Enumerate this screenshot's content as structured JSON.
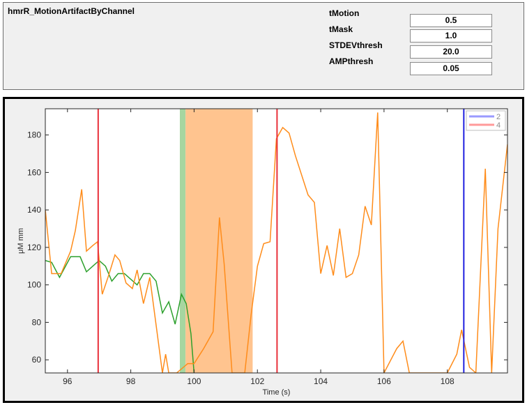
{
  "function_name": "hmrR_MotionArtifactByChannel",
  "params": [
    {
      "label": "tMotion",
      "value": "0.5"
    },
    {
      "label": "tMask",
      "value": "1.0"
    },
    {
      "label": "STDEVthresh",
      "value": "20.0"
    },
    {
      "label": "AMPthresh",
      "value": "0.05"
    }
  ],
  "chart_data": {
    "type": "line",
    "xlabel": "Time (s)",
    "ylabel": "μM mm",
    "xlim": [
      95.3,
      109.9
    ],
    "ylim": [
      53,
      194
    ],
    "xticks": [
      96,
      98,
      100,
      102,
      104,
      106,
      108
    ],
    "yticks": [
      60,
      80,
      100,
      120,
      140,
      160,
      180
    ],
    "grid": false,
    "legend": {
      "position": "top-right",
      "entries": [
        "2",
        "4"
      ],
      "colors": [
        "#9a9aff",
        "#ff9a9a"
      ]
    },
    "colors": {
      "orange": "#ff8c1a",
      "green": "#2ca02c",
      "red_line": "#e8303a",
      "blue_line": "#2020e0",
      "green_band": "#a6d6a0",
      "orange_band": "#ffc48f"
    },
    "bands": [
      {
        "x0": 99.55,
        "x1": 99.73,
        "color": "green_band"
      },
      {
        "x0": 99.73,
        "x1": 101.85,
        "color": "orange_band"
      }
    ],
    "vlines": [
      {
        "x": 96.97,
        "color": "red_line"
      },
      {
        "x": 102.62,
        "color": "red_line"
      },
      {
        "x": 108.52,
        "color": "blue_line"
      }
    ],
    "series": [
      {
        "color": "green",
        "x": [
          95.3,
          95.5,
          95.75,
          96.1,
          96.4,
          96.6,
          96.8,
          97.0,
          97.2,
          97.4,
          97.6,
          97.8,
          98.2,
          98.4,
          98.6,
          98.8,
          99.0,
          99.2,
          99.4,
          99.6,
          99.75,
          99.9,
          100.0
        ],
        "y": [
          113,
          112,
          104,
          115,
          115,
          107,
          110,
          113,
          110,
          102,
          106,
          106,
          100,
          106,
          106,
          102,
          85,
          91,
          79,
          95,
          90,
          74,
          53
        ]
      },
      {
        "color": "orange",
        "x": [
          95.3,
          95.5,
          95.8,
          96.1,
          96.25,
          96.45,
          96.6,
          96.8,
          96.95,
          97.1,
          97.3,
          97.5,
          97.65,
          97.85,
          98.05,
          98.2,
          98.4,
          98.6,
          99.0,
          99.1,
          99.2,
          99.4,
          99.45,
          99.8,
          100.0,
          100.3,
          100.6,
          100.8,
          100.95,
          101.2,
          101.6,
          101.8,
          102.0,
          102.2,
          102.4,
          102.6,
          102.8,
          103.0,
          103.2,
          103.6,
          103.8,
          104.0,
          104.2,
          104.4,
          104.6,
          104.8,
          105.0,
          105.2,
          105.4,
          105.6,
          105.8,
          106.0,
          106.4,
          106.6,
          106.8,
          108.0,
          108.3,
          108.45,
          108.7,
          108.9,
          109.2,
          109.4,
          109.6,
          109.9
        ],
        "y": [
          140,
          106,
          106,
          118,
          129,
          151,
          118,
          121,
          123,
          95,
          105,
          116,
          113,
          101,
          98,
          108,
          90,
          104,
          53,
          63,
          53,
          53,
          53,
          58,
          58,
          66,
          75,
          136,
          111,
          53,
          53,
          84,
          110,
          122,
          123,
          178,
          184,
          181,
          169,
          148,
          144,
          106,
          121,
          105,
          130,
          104,
          106,
          116,
          142,
          132,
          192,
          53,
          66,
          70,
          53,
          53,
          63,
          76,
          56,
          53,
          162,
          53,
          130,
          175
        ]
      }
    ]
  }
}
